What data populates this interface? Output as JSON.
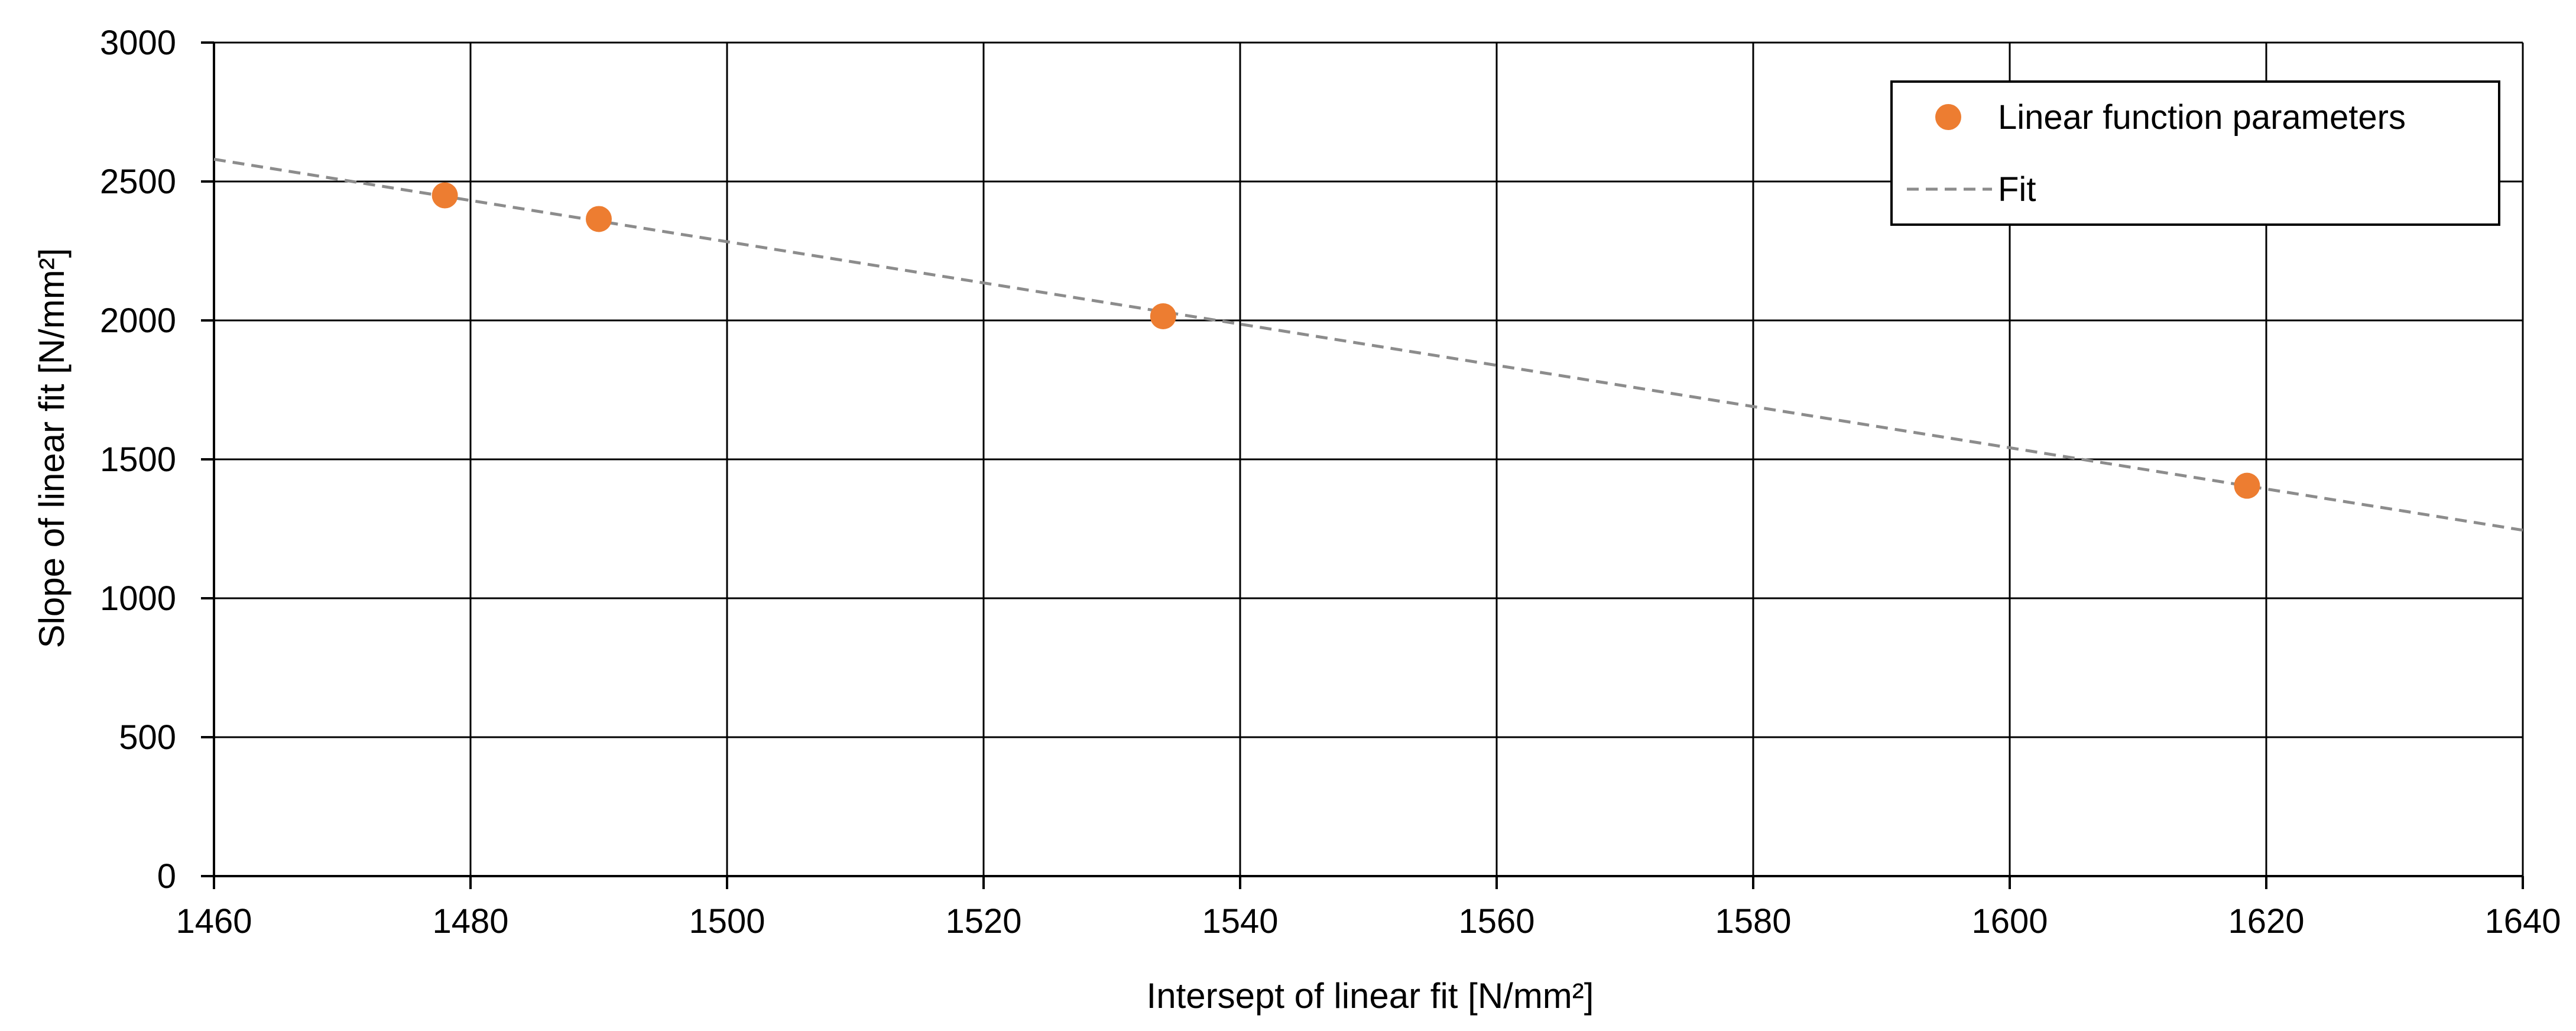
{
  "chart_data": {
    "type": "scatter",
    "title": "",
    "xlabel": "Intersept of linear fit   [N/mm²]",
    "ylabel": "Slope of linear fit   [N/mm²]",
    "xlim": [
      1460,
      1640
    ],
    "ylim": [
      0,
      3000
    ],
    "xticks": [
      1460,
      1480,
      1500,
      1520,
      1540,
      1560,
      1580,
      1600,
      1620,
      1640
    ],
    "yticks": [
      0,
      500,
      1000,
      1500,
      2000,
      2500,
      3000
    ],
    "grid": true,
    "legend_position": "top-right",
    "series": [
      {
        "name": "Linear function parameters",
        "kind": "scatter",
        "color": "#ED7D31",
        "x": [
          1478,
          1490,
          1534,
          1618.5
        ],
        "y": [
          2450,
          2365,
          2015,
          1405
        ]
      },
      {
        "name": "Fit",
        "kind": "line",
        "style": "dashed",
        "color": "#8C8C8C",
        "x": [
          1460,
          1640
        ],
        "y": [
          2580,
          1245
        ]
      }
    ]
  }
}
